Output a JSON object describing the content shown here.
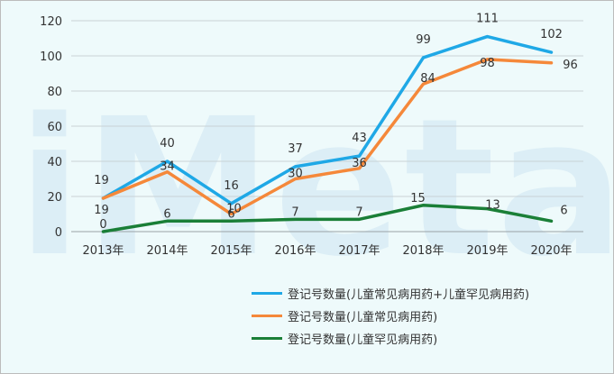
{
  "watermark": "iMeta",
  "chart_data": {
    "type": "line",
    "title": "",
    "xlabel": "",
    "ylabel": "",
    "categories": [
      "2013年",
      "2014年",
      "2015年",
      "2016年",
      "2017年",
      "2018年",
      "2019年",
      "2020年"
    ],
    "ylim": [
      0,
      120
    ],
    "yticks": [
      0,
      20,
      40,
      60,
      80,
      100,
      120
    ],
    "grid": true,
    "legend_position": "bottom-right",
    "series": [
      {
        "name": "登记号数量(儿童常见病用药+儿童罕见病用药)",
        "color": "#1fa8e6",
        "values": [
          19,
          40,
          16,
          37,
          43,
          99,
          111,
          102
        ]
      },
      {
        "name": "登记号数量(儿童常见病用药)",
        "color": "#f5883a",
        "values": [
          19,
          34,
          10,
          30,
          36,
          84,
          98,
          96
        ]
      },
      {
        "name": "登记号数量(儿童罕见病用药)",
        "color": "#1a7f37",
        "values": [
          0,
          6,
          6,
          7,
          7,
          15,
          13,
          6
        ]
      }
    ]
  }
}
